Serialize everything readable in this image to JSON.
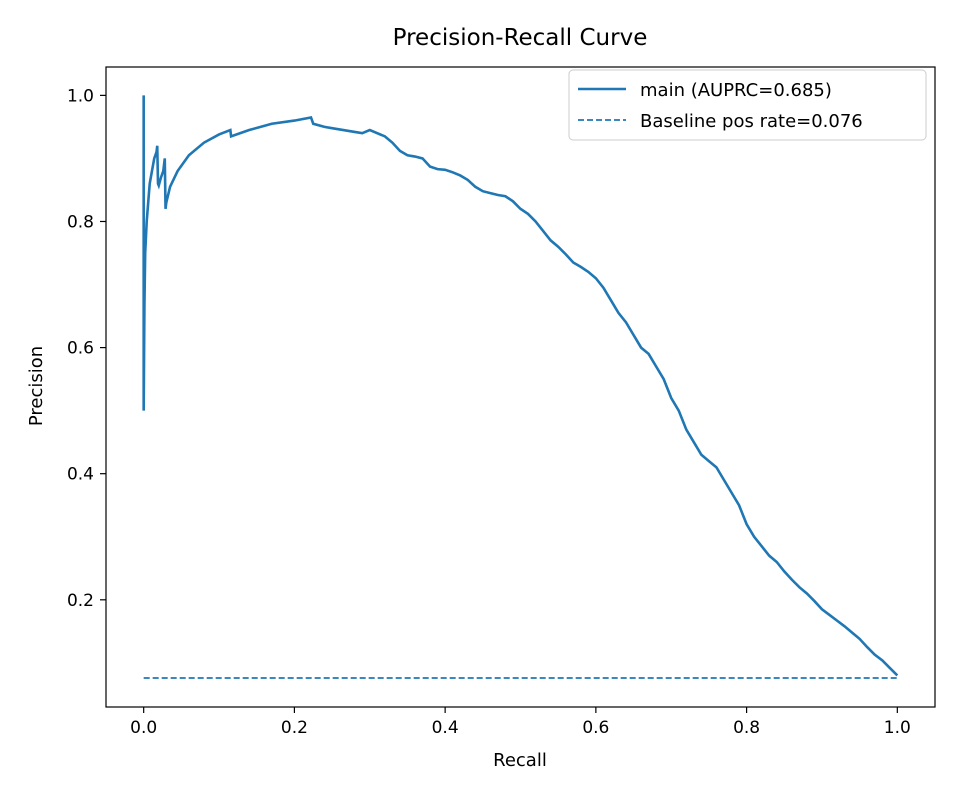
{
  "chart_data": {
    "type": "line",
    "title": "Precision-Recall Curve",
    "xlabel": "Recall",
    "ylabel": "Precision",
    "xlim": [
      -0.05,
      1.05
    ],
    "ylim": [
      0.03,
      1.045
    ],
    "xticks": [
      0.0,
      0.2,
      0.4,
      0.6,
      0.8,
      1.0
    ],
    "xtick_labels": [
      "0.0",
      "0.2",
      "0.4",
      "0.6",
      "0.8",
      "1.0"
    ],
    "yticks": [
      0.2,
      0.4,
      0.6,
      0.8,
      1.0
    ],
    "ytick_labels": [
      "0.2",
      "0.4",
      "0.6",
      "0.8",
      "1.0"
    ],
    "grid": false,
    "legend_position": "top-right",
    "series": [
      {
        "name": "main (AUPRC=0.685)",
        "style": "solid",
        "color": "#1f77b4",
        "x": [
          0.0,
          0.0,
          0.001,
          0.002,
          0.004,
          0.006,
          0.008,
          0.011,
          0.014,
          0.017,
          0.018,
          0.019,
          0.02,
          0.023,
          0.026,
          0.028,
          0.029,
          0.03,
          0.035,
          0.045,
          0.06,
          0.08,
          0.1,
          0.115,
          0.116,
          0.14,
          0.17,
          0.2,
          0.222,
          0.225,
          0.24,
          0.25,
          0.26,
          0.27,
          0.28,
          0.29,
          0.3,
          0.32,
          0.33,
          0.34,
          0.35,
          0.36,
          0.37,
          0.38,
          0.39,
          0.4,
          0.41,
          0.42,
          0.43,
          0.44,
          0.45,
          0.46,
          0.47,
          0.48,
          0.49,
          0.5,
          0.51,
          0.52,
          0.53,
          0.54,
          0.55,
          0.56,
          0.57,
          0.58,
          0.59,
          0.6,
          0.61,
          0.62,
          0.63,
          0.64,
          0.65,
          0.66,
          0.67,
          0.68,
          0.69,
          0.7,
          0.71,
          0.72,
          0.73,
          0.74,
          0.75,
          0.76,
          0.77,
          0.78,
          0.79,
          0.8,
          0.81,
          0.82,
          0.83,
          0.84,
          0.85,
          0.86,
          0.87,
          0.88,
          0.89,
          0.9,
          0.91,
          0.92,
          0.93,
          0.94,
          0.95,
          0.96,
          0.97,
          0.98,
          0.99,
          1.0
        ],
        "y": [
          1.0,
          0.5,
          0.67,
          0.75,
          0.8,
          0.83,
          0.86,
          0.88,
          0.9,
          0.91,
          0.92,
          0.86,
          0.857,
          0.87,
          0.88,
          0.9,
          0.82,
          0.83,
          0.855,
          0.88,
          0.905,
          0.925,
          0.938,
          0.945,
          0.935,
          0.945,
          0.955,
          0.96,
          0.965,
          0.955,
          0.95,
          0.948,
          0.946,
          0.944,
          0.942,
          0.94,
          0.945,
          0.935,
          0.925,
          0.912,
          0.905,
          0.903,
          0.9,
          0.887,
          0.883,
          0.882,
          0.878,
          0.873,
          0.866,
          0.855,
          0.848,
          0.845,
          0.842,
          0.84,
          0.832,
          0.82,
          0.812,
          0.8,
          0.785,
          0.77,
          0.76,
          0.748,
          0.735,
          0.728,
          0.72,
          0.71,
          0.695,
          0.675,
          0.655,
          0.64,
          0.62,
          0.6,
          0.59,
          0.57,
          0.55,
          0.52,
          0.5,
          0.47,
          0.45,
          0.43,
          0.42,
          0.41,
          0.39,
          0.37,
          0.35,
          0.32,
          0.3,
          0.285,
          0.27,
          0.26,
          0.245,
          0.232,
          0.22,
          0.21,
          0.198,
          0.185,
          0.176,
          0.167,
          0.158,
          0.148,
          0.138,
          0.125,
          0.113,
          0.104,
          0.092,
          0.08
        ]
      },
      {
        "name": "Baseline pos rate=0.076",
        "style": "dashed",
        "color": "#1f77b4",
        "x": [
          0.0,
          1.0
        ],
        "y": [
          0.076,
          0.076
        ]
      }
    ]
  }
}
